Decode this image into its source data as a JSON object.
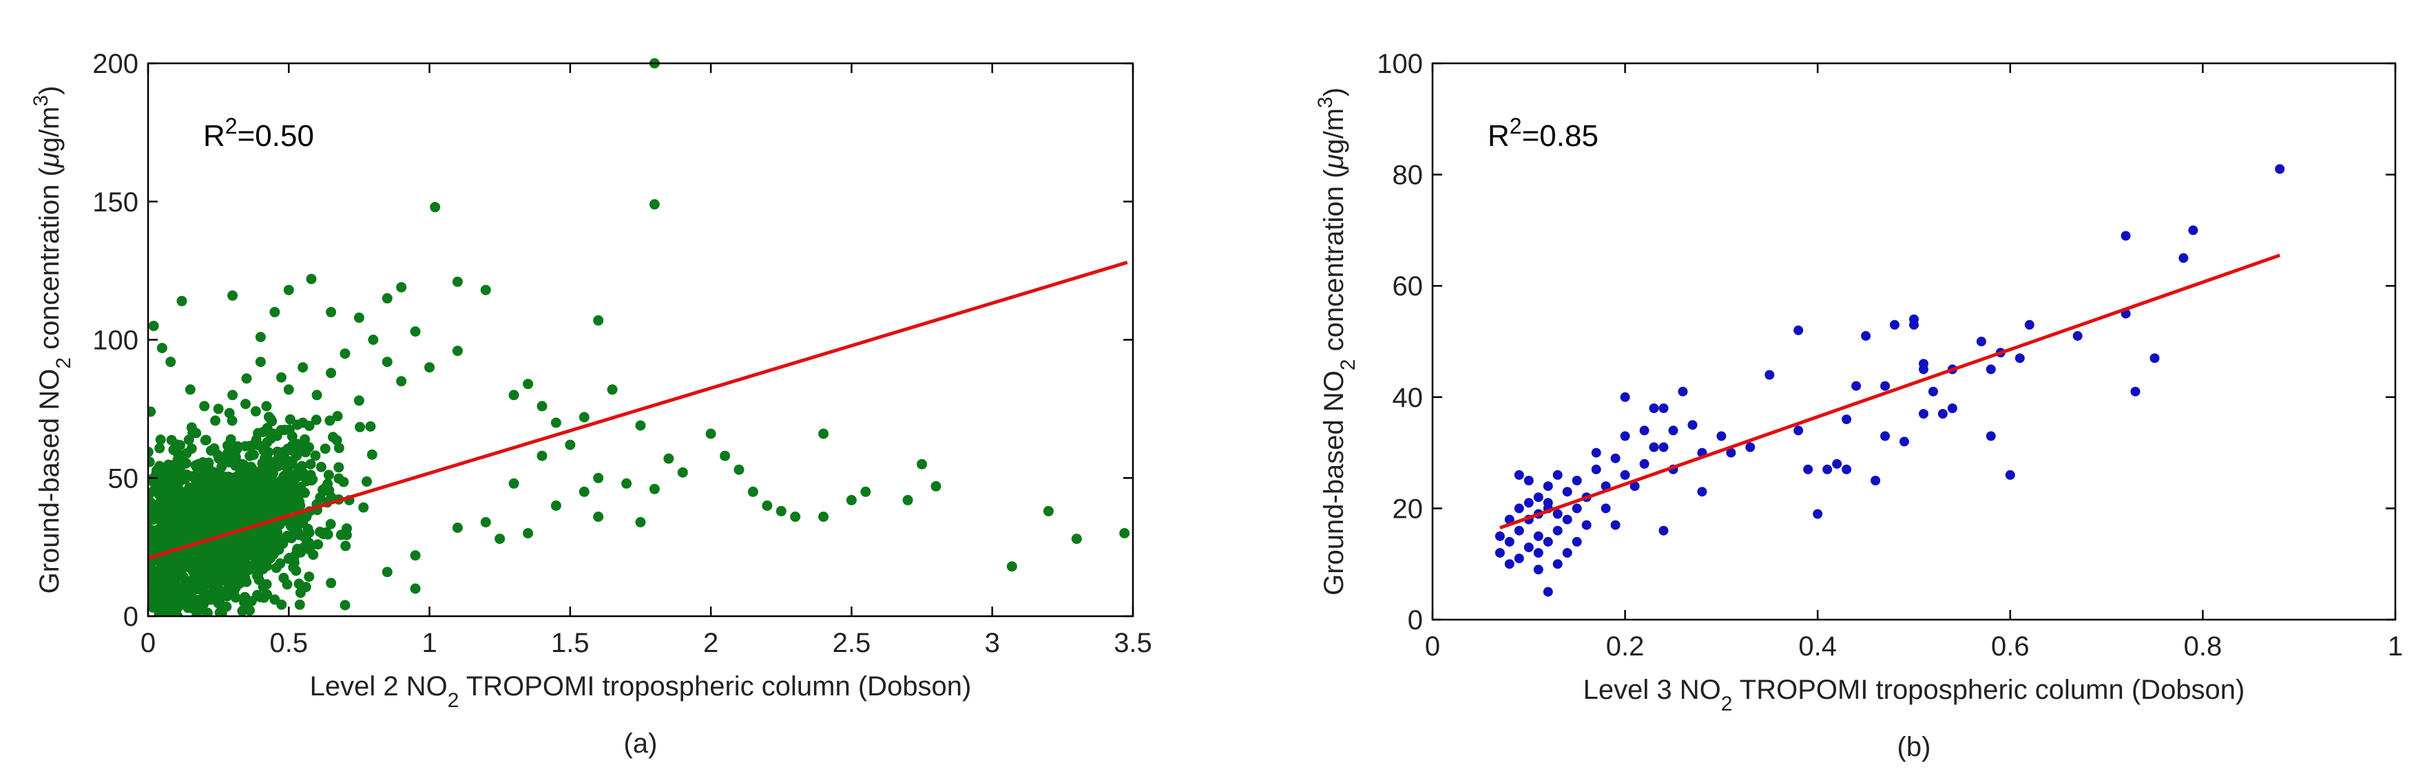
{
  "chart_data": [
    {
      "type": "scatter",
      "panel_label": "(a)",
      "xlabel": {
        "pre": "Level 2 NO",
        "sub": "2",
        "post": " TROPOMI tropospheric column (Dobson)"
      },
      "ylabel": {
        "pre": "Ground-based NO",
        "sub": "2",
        "mid": " concentration (",
        "mu": "μ",
        "unit": "g/m",
        "sup": "3",
        "post": ")"
      },
      "annotation": {
        "pre": "R",
        "sup": "2",
        "post": "=0.50"
      },
      "xlim": [
        0,
        3.5
      ],
      "ylim": [
        0,
        200
      ],
      "xticks": [
        0,
        0.5,
        1,
        1.5,
        2,
        2.5,
        3,
        3.5
      ],
      "xtick_labels": [
        "0",
        "0.5",
        "1",
        "1.5",
        "2",
        "2.5",
        "3",
        "3.5"
      ],
      "yticks": [
        0,
        50,
        100,
        150,
        200
      ],
      "ytick_labels": [
        "0",
        "50",
        "100",
        "150",
        "200"
      ],
      "point_color": "#0a7a1a",
      "line_color": "#e01010",
      "fit_line": {
        "x": [
          0,
          3.48
        ],
        "y": [
          21,
          128
        ]
      },
      "points": [
        [
          1.8,
          200
        ],
        [
          1.8,
          149
        ],
        [
          1.02,
          148
        ],
        [
          0.58,
          122
        ],
        [
          0.9,
          119
        ],
        [
          1.1,
          121
        ],
        [
          1.2,
          118
        ],
        [
          0.5,
          118
        ],
        [
          0.85,
          115
        ],
        [
          0.75,
          108
        ],
        [
          0.65,
          110
        ],
        [
          1.6,
          107
        ],
        [
          0.02,
          105
        ],
        [
          0.05,
          97
        ],
        [
          0.08,
          92
        ],
        [
          0.12,
          114
        ],
        [
          0.3,
          116
        ],
        [
          0.4,
          101
        ],
        [
          0.45,
          110
        ],
        [
          0.95,
          103
        ],
        [
          1.0,
          90
        ],
        [
          1.1,
          96
        ],
        [
          1.3,
          80
        ],
        [
          1.35,
          84
        ],
        [
          1.4,
          76
        ],
        [
          1.45,
          70
        ],
        [
          1.55,
          72
        ],
        [
          1.65,
          82
        ],
        [
          1.75,
          69
        ],
        [
          1.5,
          62
        ],
        [
          1.4,
          58
        ],
        [
          1.6,
          50
        ],
        [
          1.7,
          48
        ],
        [
          1.8,
          46
        ],
        [
          1.85,
          57
        ],
        [
          1.9,
          52
        ],
        [
          2.0,
          66
        ],
        [
          2.05,
          58
        ],
        [
          2.1,
          53
        ],
        [
          1.55,
          45
        ],
        [
          1.3,
          48
        ],
        [
          1.45,
          40
        ],
        [
          1.6,
          36
        ],
        [
          1.35,
          30
        ],
        [
          1.2,
          34
        ],
        [
          1.25,
          28
        ],
        [
          1.1,
          32
        ],
        [
          0.95,
          22
        ],
        [
          0.85,
          16
        ],
        [
          0.95,
          10
        ],
        [
          0.65,
          12
        ],
        [
          0.7,
          4
        ],
        [
          1.75,
          34
        ],
        [
          2.15,
          45
        ],
        [
          2.2,
          40
        ],
        [
          2.25,
          38
        ],
        [
          2.3,
          36
        ],
        [
          2.4,
          36
        ],
        [
          2.5,
          42
        ],
        [
          2.55,
          45
        ],
        [
          2.7,
          42
        ],
        [
          2.75,
          55
        ],
        [
          2.8,
          47
        ],
        [
          2.4,
          66
        ],
        [
          3.07,
          18
        ],
        [
          3.2,
          38
        ],
        [
          3.3,
          28
        ],
        [
          3.47,
          30
        ],
        [
          0.1,
          2
        ],
        [
          0.15,
          5
        ],
        [
          0.2,
          8
        ],
        [
          0.05,
          0
        ],
        [
          0.35,
          3
        ],
        [
          0.45,
          6
        ],
        [
          0.55,
          90
        ],
        [
          0.6,
          80
        ],
        [
          0.7,
          95
        ],
        [
          0.8,
          100
        ],
        [
          0.85,
          92
        ],
        [
          0.9,
          85
        ],
        [
          0.75,
          78
        ],
        [
          0.65,
          88
        ],
        [
          0.5,
          82
        ],
        [
          0.55,
          70
        ],
        [
          0.25,
          75
        ],
        [
          0.3,
          80
        ],
        [
          0.15,
          82
        ],
        [
          0.2,
          76
        ],
        [
          0.35,
          86
        ],
        [
          0.4,
          92
        ]
      ],
      "cloud": {
        "x_center": 0.25,
        "x_spread": 0.28,
        "y_center": 32,
        "y_spread": 14,
        "count": 1700,
        "slope": 30
      }
    },
    {
      "type": "scatter",
      "panel_label": "(b)",
      "xlabel": {
        "pre": "Level 3 NO",
        "sub": "2",
        "post": " TROPOMI tropospheric column (Dobson)"
      },
      "ylabel": {
        "pre": "Ground-based NO",
        "sub": "2",
        "mid": " concentration (",
        "mu": "μ",
        "unit": "g/m",
        "sup": "3",
        "post": ")"
      },
      "annotation": {
        "pre": "R",
        "sup": "2",
        "post": "=0.85"
      },
      "xlim": [
        0,
        1
      ],
      "ylim": [
        0,
        100
      ],
      "xticks": [
        0,
        0.2,
        0.4,
        0.6,
        0.8,
        1
      ],
      "xtick_labels": [
        "0",
        "0.2",
        "0.4",
        "0.6",
        "0.8",
        "1"
      ],
      "yticks": [
        0,
        20,
        40,
        60,
        80,
        100
      ],
      "ytick_labels": [
        "0",
        "20",
        "40",
        "60",
        "80",
        "100"
      ],
      "point_color": "#1010c0",
      "line_color": "#e01010",
      "fit_line": {
        "x": [
          0.07,
          0.88
        ],
        "y": [
          16.5,
          65.5
        ]
      },
      "points": [
        [
          0.07,
          15
        ],
        [
          0.07,
          12
        ],
        [
          0.08,
          10
        ],
        [
          0.08,
          14
        ],
        [
          0.08,
          18
        ],
        [
          0.09,
          11
        ],
        [
          0.09,
          16
        ],
        [
          0.09,
          20
        ],
        [
          0.09,
          26
        ],
        [
          0.1,
          13
        ],
        [
          0.1,
          18
        ],
        [
          0.1,
          21
        ],
        [
          0.1,
          25
        ],
        [
          0.11,
          9
        ],
        [
          0.11,
          12
        ],
        [
          0.11,
          15
        ],
        [
          0.11,
          19
        ],
        [
          0.11,
          22
        ],
        [
          0.12,
          5
        ],
        [
          0.12,
          14
        ],
        [
          0.12,
          20
        ],
        [
          0.12,
          24
        ],
        [
          0.12,
          21
        ],
        [
          0.13,
          10
        ],
        [
          0.13,
          16
        ],
        [
          0.13,
          19
        ],
        [
          0.13,
          26
        ],
        [
          0.14,
          12
        ],
        [
          0.14,
          18
        ],
        [
          0.14,
          23
        ],
        [
          0.15,
          14
        ],
        [
          0.15,
          20
        ],
        [
          0.15,
          25
        ],
        [
          0.16,
          17
        ],
        [
          0.16,
          22
        ],
        [
          0.17,
          27
        ],
        [
          0.17,
          30
        ],
        [
          0.18,
          20
        ],
        [
          0.18,
          24
        ],
        [
          0.19,
          17
        ],
        [
          0.19,
          29
        ],
        [
          0.2,
          26
        ],
        [
          0.2,
          33
        ],
        [
          0.2,
          40
        ],
        [
          0.21,
          24
        ],
        [
          0.22,
          28
        ],
        [
          0.22,
          34
        ],
        [
          0.23,
          31
        ],
        [
          0.23,
          38
        ],
        [
          0.24,
          16
        ],
        [
          0.24,
          31
        ],
        [
          0.24,
          38
        ],
        [
          0.25,
          27
        ],
        [
          0.25,
          34
        ],
        [
          0.26,
          41
        ],
        [
          0.27,
          35
        ],
        [
          0.28,
          30
        ],
        [
          0.28,
          23
        ],
        [
          0.3,
          33
        ],
        [
          0.31,
          30
        ],
        [
          0.33,
          31
        ],
        [
          0.35,
          44
        ],
        [
          0.38,
          52
        ],
        [
          0.38,
          34
        ],
        [
          0.39,
          27
        ],
        [
          0.4,
          19
        ],
        [
          0.41,
          27
        ],
        [
          0.42,
          28
        ],
        [
          0.43,
          36
        ],
        [
          0.43,
          27
        ],
        [
          0.44,
          42
        ],
        [
          0.45,
          51
        ],
        [
          0.46,
          25
        ],
        [
          0.47,
          42
        ],
        [
          0.47,
          33
        ],
        [
          0.48,
          53
        ],
        [
          0.49,
          32
        ],
        [
          0.5,
          53
        ],
        [
          0.5,
          54
        ],
        [
          0.51,
          46
        ],
        [
          0.51,
          45
        ],
        [
          0.51,
          37
        ],
        [
          0.52,
          41
        ],
        [
          0.53,
          37
        ],
        [
          0.54,
          45
        ],
        [
          0.54,
          38
        ],
        [
          0.57,
          50
        ],
        [
          0.58,
          33
        ],
        [
          0.58,
          45
        ],
        [
          0.59,
          48
        ],
        [
          0.6,
          26
        ],
        [
          0.61,
          47
        ],
        [
          0.62,
          53
        ],
        [
          0.67,
          51
        ],
        [
          0.72,
          55
        ],
        [
          0.72,
          69
        ],
        [
          0.73,
          41
        ],
        [
          0.75,
          47
        ],
        [
          0.78,
          65
        ],
        [
          0.79,
          70
        ],
        [
          0.88,
          81
        ]
      ]
    }
  ]
}
